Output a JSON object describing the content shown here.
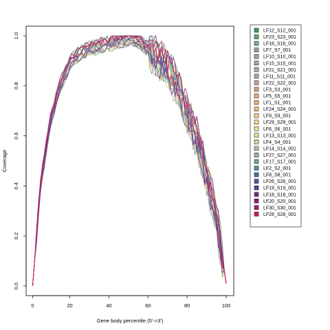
{
  "chart_data": {
    "type": "line",
    "title": "",
    "xlabel": "Gene body percentile (5'->3')",
    "ylabel": "Coverage",
    "xlim": [
      1,
      100
    ],
    "ylim": [
      0,
      1
    ],
    "xticks": [
      0,
      20,
      40,
      60,
      80,
      100
    ],
    "yticks": [
      0.0,
      0.2,
      0.4,
      0.6,
      0.8,
      1.0
    ],
    "ytick_labels": [
      "0.0",
      "0.2",
      "0.4",
      "0.6",
      "0.8",
      "1.0"
    ],
    "grid": false,
    "legend_position": "right",
    "base_curve": {
      "x": [
        1,
        5,
        10,
        15,
        20,
        25,
        30,
        35,
        40,
        45,
        50,
        55,
        60,
        65,
        70,
        75,
        80,
        85,
        90,
        95,
        100
      ],
      "y": [
        0.0,
        0.4,
        0.66,
        0.8,
        0.89,
        0.93,
        0.95,
        0.96,
        0.97,
        0.98,
        0.99,
        0.98,
        0.95,
        0.91,
        0.87,
        0.8,
        0.69,
        0.59,
        0.44,
        0.27,
        0.01
      ]
    },
    "series": [
      {
        "name": "LF12_S12_001",
        "color": "#4a9a5c"
      },
      {
        "name": "LF23_S23_001",
        "color": "#63a86e"
      },
      {
        "name": "LF16_S16_001",
        "color": "#7bb185"
      },
      {
        "name": "LF7_S7_001",
        "color": "#94a999"
      },
      {
        "name": "LF10_S10_001",
        "color": "#aaa2a8"
      },
      {
        "name": "LF15_S15_001",
        "color": "#b5a0b8"
      },
      {
        "name": "LF21_S21_001",
        "color": "#b9a3bf"
      },
      {
        "name": "LF11_S11_001",
        "color": "#bda3b3"
      },
      {
        "name": "LF22_S22_001",
        "color": "#c7a494"
      },
      {
        "name": "LF3_S3_001",
        "color": "#d2a68a"
      },
      {
        "name": "LF5_S5_001",
        "color": "#e0ad7c"
      },
      {
        "name": "LF1_S1_001",
        "color": "#ecb278"
      },
      {
        "name": "LF24_S24_001",
        "color": "#f2c07e"
      },
      {
        "name": "LF9_S9_001",
        "color": "#f4cf88"
      },
      {
        "name": "LF29_S29_001",
        "color": "#f3d98d"
      },
      {
        "name": "LF6_S6_001",
        "color": "#eee494"
      },
      {
        "name": "LF13_S13_001",
        "color": "#e0e59a"
      },
      {
        "name": "LF4_S4_001",
        "color": "#c9d99c"
      },
      {
        "name": "LF14_S14_001",
        "color": "#b0c99f"
      },
      {
        "name": "LF27_S27_001",
        "color": "#93b69f"
      },
      {
        "name": "LF17_S17_001",
        "color": "#76a3a0"
      },
      {
        "name": "LF2_S2_001",
        "color": "#5a8ea2"
      },
      {
        "name": "LF8_S8_001",
        "color": "#4a75a3"
      },
      {
        "name": "LF26_S26_001",
        "color": "#4b5ba0"
      },
      {
        "name": "LF19_S19_001",
        "color": "#5a4596"
      },
      {
        "name": "LF18_S18_001",
        "color": "#6f3388"
      },
      {
        "name": "LF20_S20_001",
        "color": "#8a2379"
      },
      {
        "name": "LF30_S30_001",
        "color": "#b01a6b"
      },
      {
        "name": "LF28_S28_001",
        "color": "#d21866"
      }
    ]
  }
}
